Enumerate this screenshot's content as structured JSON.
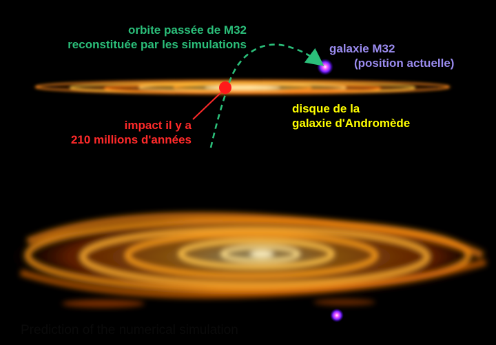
{
  "colors": {
    "orbit": "#2bbf7a",
    "m32": "#9b8cf0",
    "disk_label": "#ffff00",
    "impact": "#ff2a2a",
    "caption": "#0a0a0a"
  },
  "labels": {
    "orbit": [
      "orbite passée de M32",
      "reconstituée par les simulations"
    ],
    "m32": [
      "galaxie M32",
      "(position actuelle)"
    ],
    "disk": [
      "disque de la",
      "galaxie d'Andromède"
    ],
    "impact": [
      "impact il y a",
      "210 millions d'années"
    ]
  },
  "caption": "Prediction of the numerical simulation"
}
